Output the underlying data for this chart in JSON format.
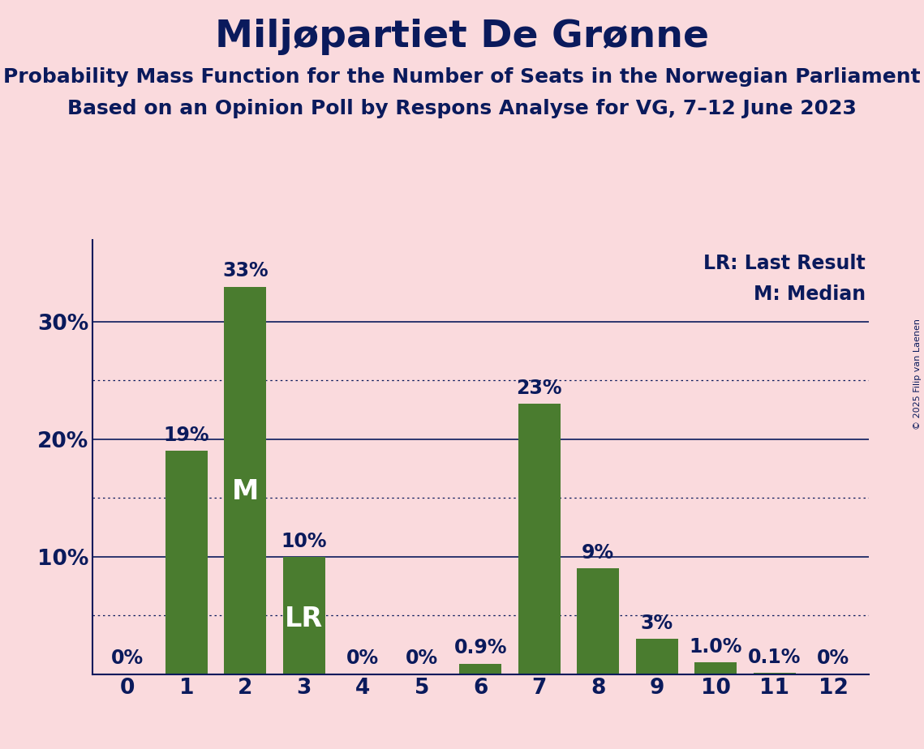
{
  "title": "Miljøpartiet De Grønne",
  "subtitle1": "Probability Mass Function for the Number of Seats in the Norwegian Parliament",
  "subtitle2": "Based on an Opinion Poll by Respons Analyse for VG, 7–12 June 2023",
  "copyright": "© 2025 Filip van Laenen",
  "categories": [
    0,
    1,
    2,
    3,
    4,
    5,
    6,
    7,
    8,
    9,
    10,
    11,
    12
  ],
  "values": [
    0.0,
    19.0,
    33.0,
    10.0,
    0.0,
    0.0,
    0.9,
    23.0,
    9.0,
    3.0,
    1.0,
    0.1,
    0.0
  ],
  "bar_labels": [
    "0%",
    "19%",
    "33%",
    "10%",
    "0%",
    "0%",
    "0.9%",
    "23%",
    "9%",
    "3%",
    "1.0%",
    "0.1%",
    "0%"
  ],
  "bar_color": "#4a7c2f",
  "background_color": "#fadadd",
  "text_color": "#0a1a5c",
  "title_fontsize": 34,
  "subtitle_fontsize": 18,
  "bar_label_fontsize": 17,
  "axis_tick_fontsize": 19,
  "legend_fontsize": 17,
  "median_bar": 2,
  "lr_bar": 3,
  "ylim": [
    0,
    37
  ],
  "yticks": [
    10,
    20,
    30
  ],
  "ytick_labels": [
    "10%",
    "20%",
    "30%"
  ],
  "solid_gridlines": [
    10,
    20,
    30
  ],
  "dotted_gridlines": [
    5,
    15,
    25
  ],
  "legend_lr": "LR: Last Result",
  "legend_m": "M: Median"
}
